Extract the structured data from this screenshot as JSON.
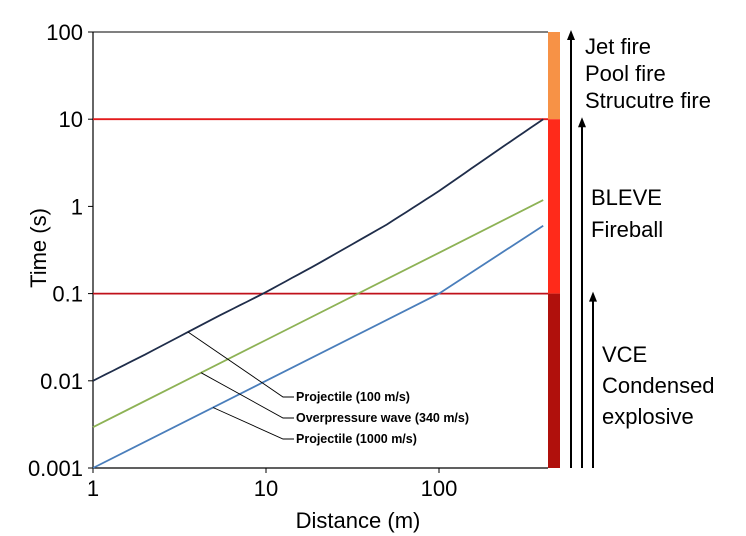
{
  "chart_data": {
    "type": "line",
    "title": "",
    "xlabel": "Distance (m)",
    "ylabel": "Time (s)",
    "xscale": "log",
    "yscale": "log",
    "xlim": [
      1,
      400
    ],
    "ylim": [
      0.001,
      100
    ],
    "xticks": [
      1,
      10,
      100
    ],
    "xtick_labels": [
      "1",
      "10",
      "100"
    ],
    "yticks": [
      0.001,
      0.01,
      0.1,
      1,
      10,
      100
    ],
    "ytick_labels": [
      "0.001",
      "0.01",
      "0.1",
      "1",
      "10",
      "100"
    ],
    "grid": false,
    "series": [
      {
        "name": "Projectile (100 m/s)",
        "color": "#1f2d4a",
        "x": [
          1,
          2,
          5,
          10,
          20,
          50,
          100,
          200,
          400
        ],
        "y": [
          0.01,
          0.02,
          0.052,
          0.104,
          0.22,
          0.62,
          1.5,
          3.9,
          10
        ]
      },
      {
        "name": "Overpressure wave (340 m/s)",
        "color": "#8db255",
        "x": [
          1,
          10,
          100,
          400
        ],
        "y": [
          0.00294,
          0.0294,
          0.294,
          1.18
        ]
      },
      {
        "name": "Projectile (1000 m/s)",
        "color": "#4a7ebb",
        "x": [
          1,
          10,
          100,
          400
        ],
        "y": [
          0.001,
          0.01,
          0.1,
          0.6
        ]
      }
    ],
    "threshold_lines": [
      {
        "y": 10,
        "color": "#e31a1c"
      },
      {
        "y": 0.1,
        "color": "#c0111a"
      }
    ],
    "side_bands": [
      {
        "from": 10,
        "to": 100,
        "color": "#f79246",
        "labels": [
          "Jet fire",
          "Pool fire",
          "Strucutre fire"
        ]
      },
      {
        "from": 0.1,
        "to": 10,
        "color": "#ff2a1a",
        "labels": [
          "BLEVE",
          "Fireball"
        ]
      },
      {
        "from": 0.001,
        "to": 0.1,
        "color": "#b0100c",
        "labels": [
          "VCE",
          "Condensed",
          "explosive"
        ]
      }
    ]
  }
}
